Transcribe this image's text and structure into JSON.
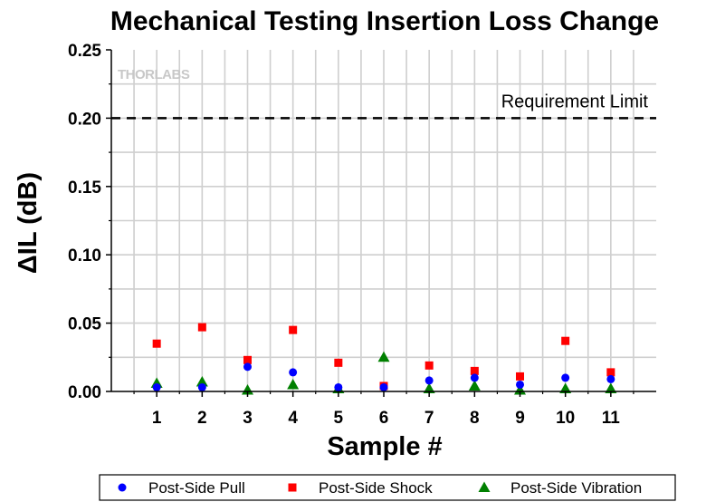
{
  "chart_data": {
    "type": "scatter",
    "title": "Mechanical Testing Insertion Loss Change",
    "xlabel": "Sample #",
    "ylabel": "ΔIL (dB)",
    "categories": [
      "1",
      "2",
      "3",
      "4",
      "5",
      "6",
      "7",
      "8",
      "9",
      "10",
      "11"
    ],
    "x": [
      1,
      2,
      3,
      4,
      5,
      6,
      7,
      8,
      9,
      10,
      11
    ],
    "xlim": [
      0,
      12
    ],
    "ylim": [
      0,
      0.25
    ],
    "yticks": [
      "0.00",
      "0.05",
      "0.10",
      "0.15",
      "0.20",
      "0.25"
    ],
    "grid": true,
    "legend_position": "bottom",
    "reference_line": {
      "y": 0.2,
      "label": "Requirement Limit",
      "style": "dashed"
    },
    "watermark": "THORLABS",
    "series": [
      {
        "name": "Post-Side Pull",
        "marker": "circle",
        "color": "#0000ff",
        "values": [
          0.003,
          0.003,
          0.018,
          0.014,
          0.003,
          0.003,
          0.008,
          0.01,
          0.005,
          0.01,
          0.009
        ]
      },
      {
        "name": "Post-Side Shock",
        "marker": "square",
        "color": "#ff0000",
        "values": [
          0.035,
          0.047,
          0.023,
          0.045,
          0.021,
          0.004,
          0.019,
          0.015,
          0.011,
          0.037,
          0.014
        ]
      },
      {
        "name": "Post-Side Vibration",
        "marker": "triangle",
        "color": "#008000",
        "values": [
          0.006,
          0.007,
          0.001,
          0.005,
          0.002,
          0.025,
          0.002,
          0.004,
          0.001,
          0.002,
          0.002
        ]
      }
    ]
  }
}
